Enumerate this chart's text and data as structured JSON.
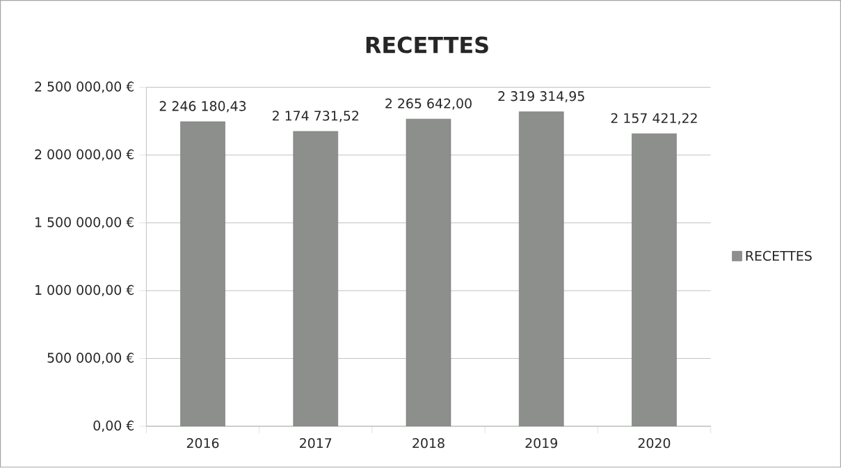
{
  "chart_data": {
    "type": "bar",
    "title": "RECETTES",
    "categories": [
      "2016",
      "2017",
      "2018",
      "2019",
      "2020"
    ],
    "series": [
      {
        "name": "RECETTES",
        "color": "#8c8f8c",
        "values": [
          2246180.43,
          2174731.52,
          2265642.0,
          2319314.95,
          2157421.22
        ],
        "value_labels": [
          "2 246 180,43",
          "2 174 731,52",
          "2 265 642,00",
          "2 319 314,95",
          "2 157 421,22"
        ]
      }
    ],
    "ylim": [
      0,
      2500000
    ],
    "yticks": [
      {
        "value": 0,
        "label": "0,00 €"
      },
      {
        "value": 500000,
        "label": "500 000,00 €"
      },
      {
        "value": 1000000,
        "label": "1 000 000,00 €"
      },
      {
        "value": 1500000,
        "label": "1 500 000,00 €"
      },
      {
        "value": 2000000,
        "label": "2 000 000,00 €"
      },
      {
        "value": 2500000,
        "label": "2 500 000,00 €"
      }
    ],
    "grid": "y",
    "legend": "right"
  }
}
